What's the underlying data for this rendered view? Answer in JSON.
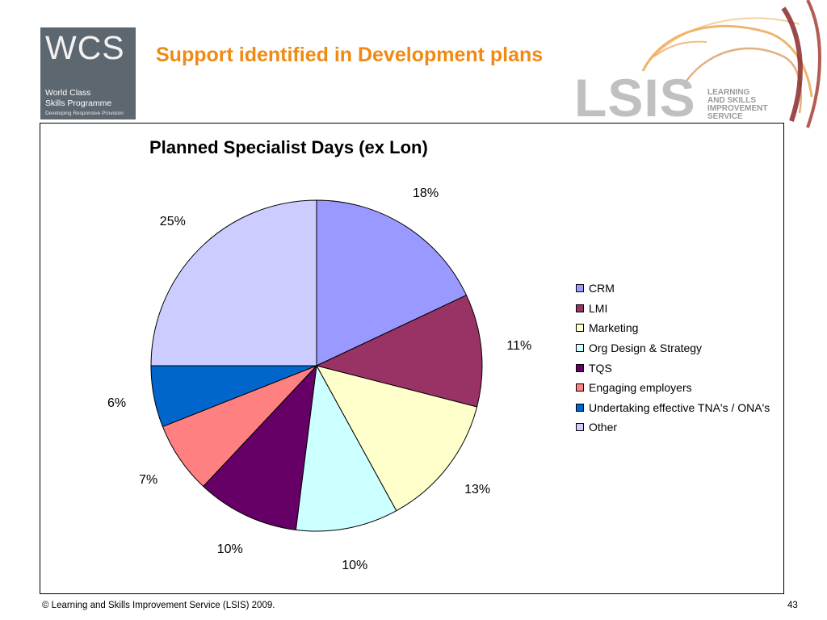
{
  "header": {
    "title": "Support identified in Development plans",
    "wcs_logo": {
      "letters": "WCS",
      "line1": "World Class",
      "line2": "Skills Programme",
      "line3": "Developing Responsive Provision"
    },
    "lsis_logo": {
      "name": "LSIS",
      "line1": "LEARNING",
      "line2": "AND SKILLS",
      "line3": "IMPROVEMENT",
      "line4": "SERVICE"
    }
  },
  "chart_data": {
    "type": "pie",
    "title": "Planned Specialist Days (ex Lon)",
    "categories": [
      "CRM",
      "LMI",
      "Marketing",
      "Org Design & Strategy",
      "TQS",
      "Engaging employers",
      "Undertaking effective TNA's / ONA's",
      "Other"
    ],
    "values": [
      18,
      11,
      13,
      10,
      10,
      7,
      6,
      25
    ],
    "labels": [
      "18%",
      "11%",
      "13%",
      "10%",
      "10%",
      "7%",
      "6%",
      "25%"
    ],
    "colors": [
      "#9999ff",
      "#993366",
      "#ffffcc",
      "#ccffff",
      "#660066",
      "#ff8080",
      "#0066cc",
      "#ccccff"
    ],
    "start_angle_deg": 0,
    "direction": "clockwise",
    "legend_position": "right"
  },
  "footer": {
    "copyright": "© Learning and Skills Improvement Service (LSIS) 2009.",
    "page_number": "43"
  }
}
